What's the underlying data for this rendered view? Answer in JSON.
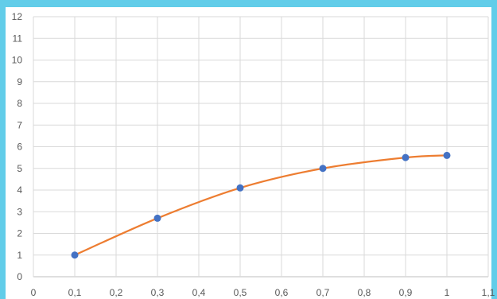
{
  "chart_data": {
    "type": "scatter",
    "title": "",
    "xlabel": "",
    "ylabel": "",
    "xlim": [
      0,
      1.1
    ],
    "ylim": [
      0,
      12
    ],
    "x_ticks": [
      "0",
      "0,1",
      "0,2",
      "0,3",
      "0,4",
      "0,5",
      "0,6",
      "0,7",
      "0,8",
      "0,9",
      "1",
      "1,1"
    ],
    "y_ticks": [
      "0",
      "1",
      "2",
      "3",
      "4",
      "5",
      "6",
      "7",
      "8",
      "9",
      "10",
      "11",
      "12"
    ],
    "grid": true,
    "legend": "none",
    "series": [
      {
        "x": [
          0.1,
          0.3,
          0.5,
          0.7,
          0.9,
          1.0
        ],
        "y": [
          1.0,
          2.7,
          4.1,
          5.0,
          5.5,
          5.6
        ],
        "marker_color": "#4472c4",
        "line_color": "#ed7d31",
        "smooth_line": true
      }
    ]
  },
  "colors": {
    "frame": "#62cde9",
    "grid": "#d9d9d9",
    "axis": "#bfbfbf",
    "tick_text": "#595959"
  }
}
